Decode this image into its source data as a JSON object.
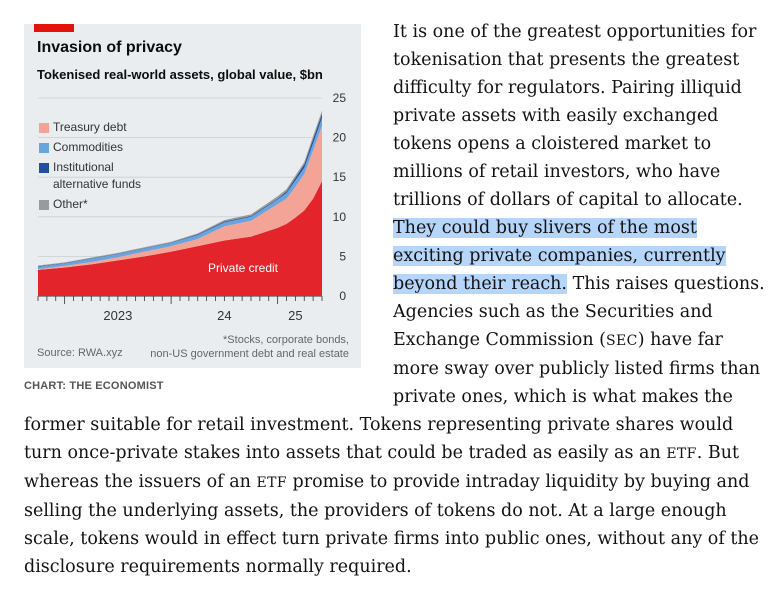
{
  "chart": {
    "title": "Invasion of privacy",
    "subtitle": "Tokenised real-world assets, global value, $bn",
    "legend": [
      {
        "label": "Treasury debt",
        "color": "#f4a497"
      },
      {
        "label": "Commodities",
        "color": "#6aa4dc"
      },
      {
        "label": "Institutional alternative funds",
        "line1": "Institutional",
        "line2": "alternative funds",
        "color": "#1f4f9e"
      },
      {
        "label": "Other*",
        "color": "#9a9a9a"
      }
    ],
    "area_label": "Private credit",
    "source": "Source: RWA.xyz",
    "footnote_line1": "*Stocks, corporate bonds,",
    "footnote_line2": "non-US government debt and real estate",
    "credit": "CHART: THE ECONOMIST",
    "colors": {
      "private_credit": "#e3242b",
      "treasury": "#f4a497",
      "commodities": "#6aa4dc",
      "funds": "#1f4f9e",
      "other": "#9a9a9a",
      "brand_red": "#e3120b"
    }
  },
  "chart_data": {
    "type": "area",
    "stacked": true,
    "title": "Invasion of privacy",
    "subtitle": "Tokenised real-world assets, global value, $bn",
    "x_ticks": [
      "2023",
      "24",
      "25"
    ],
    "y_ticks": [
      0,
      5,
      10,
      15,
      20,
      25
    ],
    "ylim": [
      0,
      25
    ],
    "y_axis_side": "right",
    "x": [
      "2022-10",
      "2023-01",
      "2023-04",
      "2023-07",
      "2023-10",
      "2024-01",
      "2024-04",
      "2024-07",
      "2024-10",
      "2025-01",
      "2025-02",
      "2025-03",
      "2025-04",
      "2025-05",
      "2025-06"
    ],
    "series": [
      {
        "name": "Private credit",
        "values": [
          3.3,
          3.6,
          4.0,
          4.5,
          5.0,
          5.6,
          6.3,
          7.0,
          7.5,
          8.6,
          9.1,
          9.9,
          10.8,
          12.3,
          14.5
        ]
      },
      {
        "name": "Treasury debt",
        "values": [
          0.1,
          0.2,
          0.3,
          0.4,
          0.6,
          0.7,
          0.9,
          1.8,
          2.0,
          3.0,
          3.2,
          3.9,
          4.6,
          6.1,
          7.0
        ]
      },
      {
        "name": "Commodities",
        "values": [
          0.3,
          0.3,
          0.4,
          0.4,
          0.4,
          0.4,
          0.5,
          0.5,
          0.5,
          0.6,
          0.7,
          0.8,
          0.8,
          0.9,
          1.0
        ]
      },
      {
        "name": "Institutional alternative funds",
        "values": [
          0.05,
          0.05,
          0.05,
          0.05,
          0.05,
          0.05,
          0.1,
          0.1,
          0.1,
          0.1,
          0.2,
          0.3,
          0.4,
          0.5,
          0.5
        ]
      },
      {
        "name": "Other*",
        "values": [
          0.1,
          0.1,
          0.1,
          0.1,
          0.1,
          0.1,
          0.1,
          0.2,
          0.2,
          0.3,
          0.3,
          0.3,
          0.3,
          0.4,
          0.4
        ]
      }
    ],
    "annotation": "Private credit"
  },
  "article": {
    "p1_a": "It is one of the greatest opportunities for tokenisation that presents the greatest difficulty for regulators. Pairing illiquid private assets with easily exchanged tokens opens a cloistered market to millions of retail investors, who have trillions of dollars of capital to allocate. ",
    "p1_highlight": "They could buy slivers of the most exciting private companies, currently beyond their reach.",
    "p1_b": " This raises questions. Agencies such as the Securities and Exchange Commission (",
    "p1_sec": "SEC",
    "p1_c": ") have far more sway over publicly listed firms than private ones, which is what makes the former suitable for retail investment. Tokens representing private shares would turn once-private stakes into assets that could be traded as easily as an ",
    "p1_etf1": "ETF",
    "p1_d": ". But whereas the issuers of an ",
    "p1_etf2": "ETF",
    "p1_e": " promise to provide intraday liquidity by buying and selling the underlying assets, the providers of tokens do not. At a large enough scale, tokens would in effect turn private firms into public ones, without any of the disclosure requirements normally required."
  }
}
